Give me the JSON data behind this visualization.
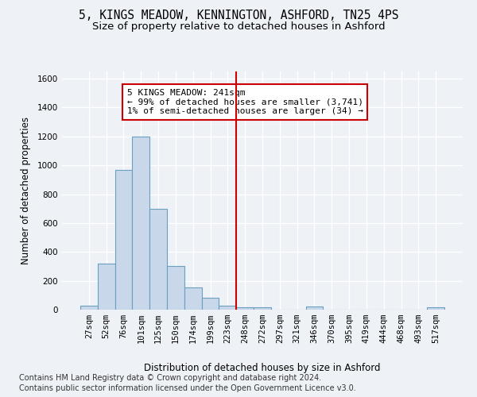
{
  "title_line1": "5, KINGS MEADOW, KENNINGTON, ASHFORD, TN25 4PS",
  "title_line2": "Size of property relative to detached houses in Ashford",
  "xlabel": "Distribution of detached houses by size in Ashford",
  "ylabel": "Number of detached properties",
  "categories": [
    "27sqm",
    "52sqm",
    "76sqm",
    "101sqm",
    "125sqm",
    "150sqm",
    "174sqm",
    "199sqm",
    "223sqm",
    "248sqm",
    "272sqm",
    "297sqm",
    "321sqm",
    "346sqm",
    "370sqm",
    "395sqm",
    "419sqm",
    "444sqm",
    "468sqm",
    "493sqm",
    "517sqm"
  ],
  "values": [
    25,
    320,
    970,
    1200,
    700,
    305,
    155,
    80,
    25,
    15,
    15,
    0,
    0,
    20,
    0,
    0,
    0,
    0,
    0,
    0,
    15
  ],
  "bar_color": "#c8d8ea",
  "bar_edge_color": "#6a9fc0",
  "annotation_text": "5 KINGS MEADOW: 241sqm\n← 99% of detached houses are smaller (3,741)\n1% of semi-detached houses are larger (34) →",
  "annotation_box_color": "#ffffff",
  "annotation_box_edge_color": "#cc0000",
  "vline_color": "#cc0000",
  "ylim": [
    0,
    1650
  ],
  "yticks": [
    0,
    200,
    400,
    600,
    800,
    1000,
    1200,
    1400,
    1600
  ],
  "background_color": "#eef2f7",
  "footer_line1": "Contains HM Land Registry data © Crown copyright and database right 2024.",
  "footer_line2": "Contains public sector information licensed under the Open Government Licence v3.0.",
  "title_fontsize": 10.5,
  "subtitle_fontsize": 9.5,
  "axis_label_fontsize": 8.5,
  "tick_fontsize": 7.5,
  "annotation_fontsize": 8,
  "footer_fontsize": 7
}
